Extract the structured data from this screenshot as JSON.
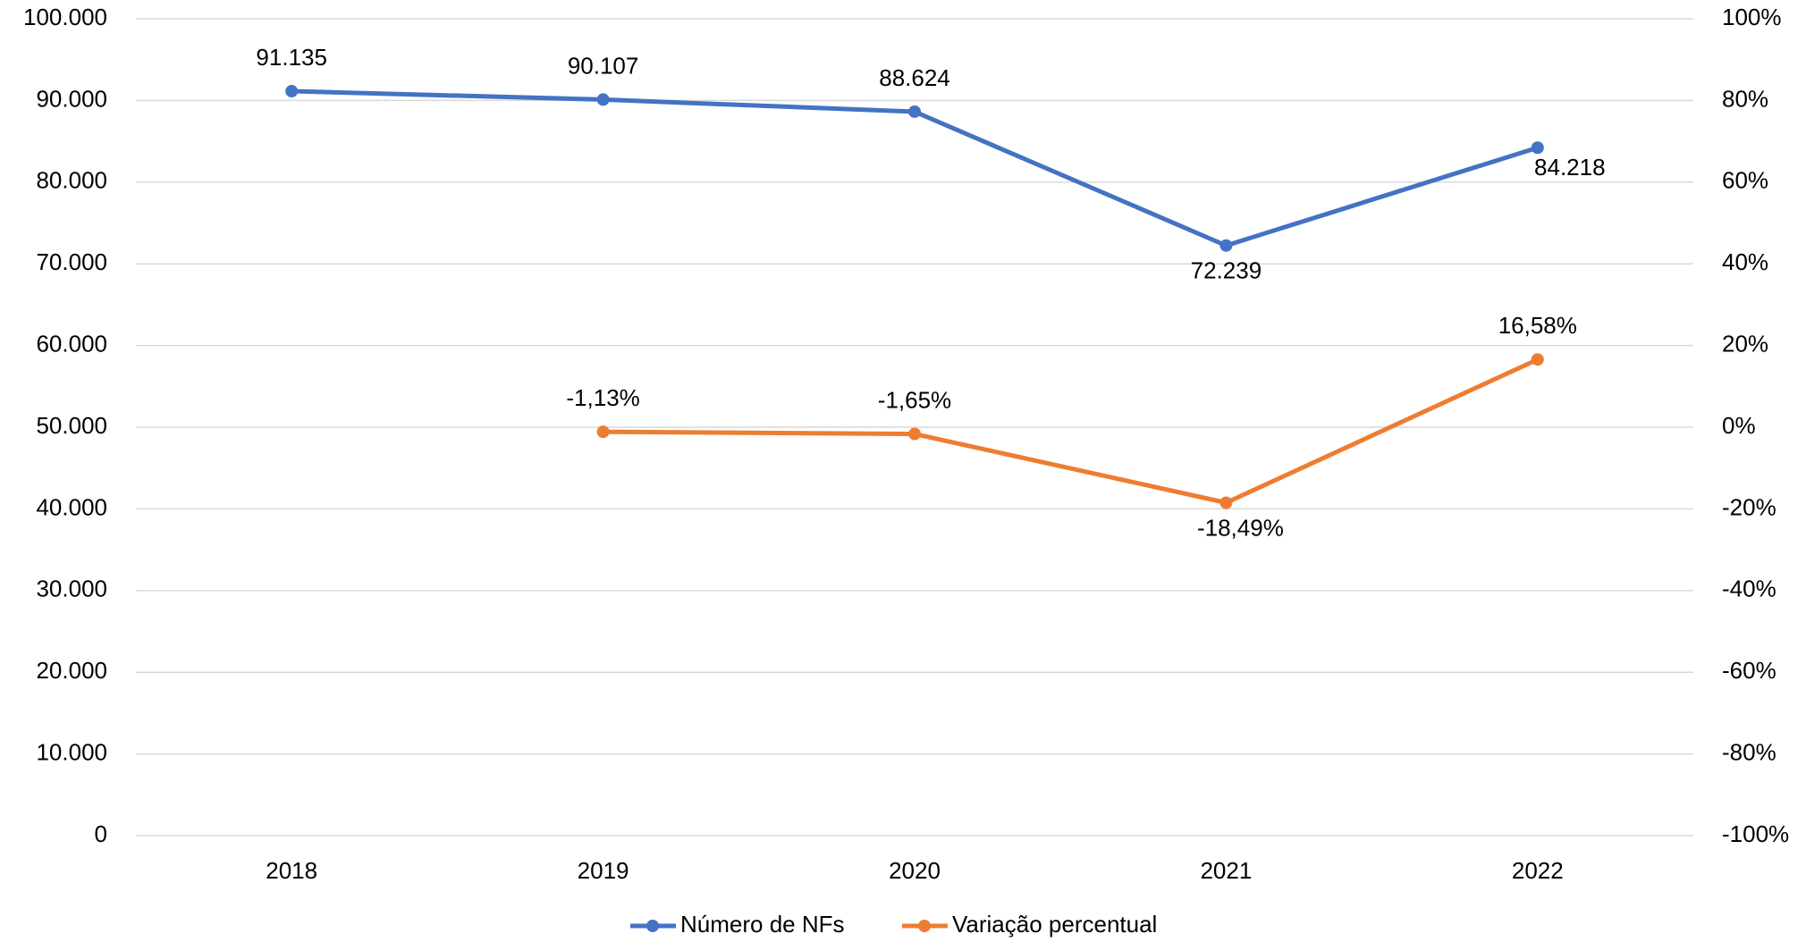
{
  "chart_data": {
    "type": "line",
    "categories": [
      "2018",
      "2019",
      "2020",
      "2021",
      "2022"
    ],
    "series": [
      {
        "name": "Número de NFs",
        "color": "#4472c4",
        "values": [
          91135,
          90107,
          88624,
          72239,
          84218
        ],
        "value_labels": [
          "91.135",
          "90.107",
          "88.624",
          "72.239",
          "84.218"
        ]
      },
      {
        "name": "Variação percentual",
        "color": "#ed7d31",
        "axis": "y2",
        "values": [
          null,
          -1.13,
          -1.65,
          -18.49,
          16.58
        ],
        "value_labels": [
          null,
          "-1,13%",
          "-1,65%",
          "-18,49%",
          "16,58%"
        ]
      }
    ],
    "ylim": [
      0,
      100000
    ],
    "yticks": [
      0,
      {
        "value": 10000,
        "label": "10.000"
      },
      {
        "value": 20000,
        "label": "20.000"
      },
      {
        "value": 30000,
        "label": "30.000"
      },
      {
        "value": 40000,
        "label": "40.000"
      },
      {
        "value": 50000,
        "label": "50.000"
      },
      {
        "value": 60000,
        "label": "60.000"
      },
      {
        "value": 70000,
        "label": "70.000"
      },
      {
        "value": 80000,
        "label": "80.000"
      },
      {
        "value": 90000,
        "label": "90.000"
      },
      {
        "value": 100000,
        "label": "100.000"
      }
    ],
    "y2lim": [
      -100,
      100
    ],
    "y2ticks": [
      {
        "value": -100,
        "label": "-100%"
      },
      {
        "value": -80,
        "label": "-80%"
      },
      {
        "value": -60,
        "label": "-60%"
      },
      {
        "value": -40,
        "label": "-40%"
      },
      {
        "value": -20,
        "label": "-20%"
      },
      {
        "value": 0,
        "label": "0%"
      },
      {
        "value": 20,
        "label": "20%"
      },
      {
        "value": 40,
        "label": "40%"
      },
      {
        "value": 60,
        "label": "60%"
      },
      {
        "value": 80,
        "label": "80%"
      },
      {
        "value": 100,
        "label": "100%"
      }
    ],
    "grid": true,
    "legend": "bottom"
  }
}
